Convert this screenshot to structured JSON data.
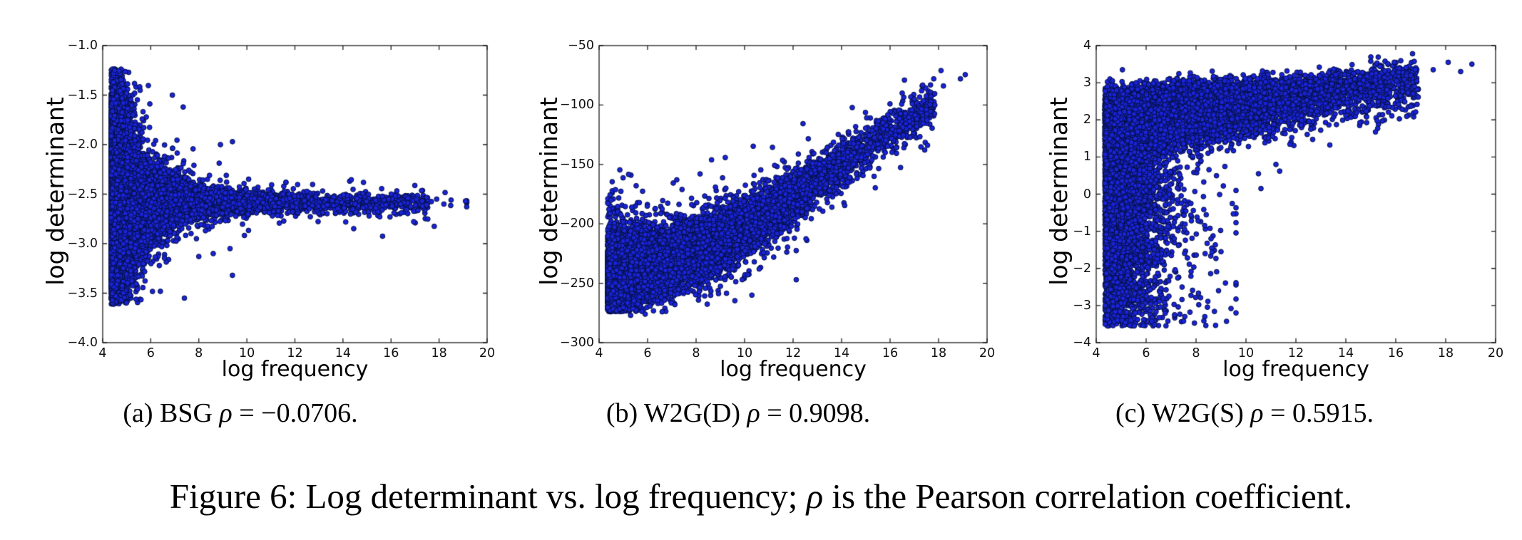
{
  "figure_caption": {
    "prefix": "Figure 6: Log determinant vs. log frequency; ",
    "rho": "ρ",
    "suffix": " is the Pearson correlation coefficient."
  },
  "chart_data": [
    {
      "id": "a",
      "type": "scatter",
      "method": "BSG",
      "pearson_rho": -0.0706,
      "caption": {
        "prefix": "(a) BSG ",
        "rho": "ρ",
        "suffix": " = −0.0706."
      },
      "xlabel": "log frequency",
      "ylabel": "log determinant",
      "xlim": [
        4,
        20
      ],
      "ylim": [
        -4,
        -1
      ],
      "xtick_values": [
        4,
        6,
        8,
        10,
        12,
        14,
        16,
        18,
        20
      ],
      "xtick_labels": [
        "4",
        "6",
        "8",
        "10",
        "12",
        "14",
        "16",
        "18",
        "20"
      ],
      "ytick_values": [
        -1.0,
        -1.5,
        -2.0,
        -2.5,
        -3.0,
        -3.5,
        -4.0
      ],
      "ytick_labels": [
        "−1.0",
        "−1.5",
        "−2.0",
        "−2.5",
        "−3.0",
        "−3.5",
        "−4.0"
      ],
      "marker": {
        "fill": "#1a23d6",
        "edge": "#04103f",
        "radius": 3.4
      },
      "n_points": 20000,
      "model": {
        "kind": "funnel",
        "x_min": 4.36,
        "x_max": 19.15,
        "x_mix": [
          [
            0.58,
            0.32
          ],
          [
            0.38,
            2.2
          ]
        ],
        "x_uniform_span": 13.2,
        "snap_below": 5.3,
        "snap_step": 0.045,
        "y_center": -2.59,
        "sigma_base": 0.05,
        "sigma_amp": 0.5,
        "sigma_decay": 1.3,
        "tail_frac": 0.08,
        "tail_mult": 2.4,
        "y_clip": [
          -3.61,
          -1.23
        ]
      },
      "outliers": [
        [
          7.4,
          -3.55
        ],
        [
          9.4,
          -3.32
        ],
        [
          8.0,
          -3.13
        ],
        [
          8.6,
          -3.1
        ],
        [
          9.3,
          -3.05
        ],
        [
          7.9,
          -2.95
        ],
        [
          8.9,
          -2.0
        ],
        [
          9.4,
          -1.97
        ],
        [
          6.9,
          -1.5
        ],
        [
          7.35,
          -1.62
        ],
        [
          15.9,
          -2.55
        ],
        [
          16.4,
          -2.6
        ],
        [
          16.7,
          -2.54
        ],
        [
          17.3,
          -2.57
        ],
        [
          17.9,
          -2.55
        ],
        [
          18.2,
          -2.6
        ],
        [
          18.5,
          -2.56
        ],
        [
          19.1,
          -2.57
        ]
      ]
    },
    {
      "id": "b",
      "type": "scatter",
      "method": "W2G(D)",
      "pearson_rho": 0.9098,
      "caption": {
        "prefix": "(b) W2G(D) ",
        "rho": "ρ",
        "suffix": " = 0.9098."
      },
      "xlabel": "log frequency",
      "ylabel": "log determinant",
      "xlim": [
        4,
        20
      ],
      "ylim": [
        -300,
        -50
      ],
      "xtick_values": [
        4,
        6,
        8,
        10,
        12,
        14,
        16,
        18,
        20
      ],
      "xtick_labels": [
        "4",
        "6",
        "8",
        "10",
        "12",
        "14",
        "16",
        "18",
        "20"
      ],
      "ytick_values": [
        -50,
        -100,
        -150,
        -200,
        -250,
        -300
      ],
      "ytick_labels": [
        "−50",
        "−100",
        "−150",
        "−200",
        "−250",
        "−300"
      ],
      "marker": {
        "fill": "#1a23d6",
        "edge": "#04103f",
        "radius": 3.4
      },
      "n_points": 24000,
      "model": {
        "kind": "rising_band",
        "x_min": 4.36,
        "x_max": 19.1,
        "exp_w": 0.5,
        "exp_scale": 0.55,
        "norm_w": 0.42,
        "norm_scale": 3.8,
        "uniform_span": 13.5,
        "snap_below": 5.3,
        "snap_step": 0.045,
        "mu_anchors": [
          [
            4.36,
            -246
          ],
          [
            6,
            -236
          ],
          [
            8,
            -224
          ],
          [
            10,
            -204
          ],
          [
            12,
            -178
          ],
          [
            14,
            -150
          ],
          [
            16,
            -122
          ],
          [
            18,
            -96
          ],
          [
            19.3,
            -78
          ]
        ],
        "sigma_anchors": [
          [
            4.36,
            12
          ],
          [
            10,
            12
          ],
          [
            14,
            10
          ],
          [
            17,
            8
          ],
          [
            19.3,
            6
          ]
        ],
        "tail_frac": 0.06,
        "tail_mult": 2.2,
        "y_clip": [
          -274,
          -55
        ]
      },
      "outliers": [
        [
          5.3,
          -206
        ],
        [
          5.6,
          -204
        ],
        [
          6.4,
          -203
        ],
        [
          6.6,
          -206
        ],
        [
          5.9,
          -209
        ],
        [
          10.4,
          -232
        ],
        [
          10.6,
          -238
        ],
        [
          9.9,
          -247
        ],
        [
          10.3,
          -260
        ],
        [
          11.2,
          -228
        ],
        [
          12.8,
          -188
        ],
        [
          13.6,
          -186
        ],
        [
          5.3,
          -277
        ],
        [
          5.9,
          -276
        ],
        [
          6.6,
          -274
        ],
        [
          16.5,
          -90
        ],
        [
          17.0,
          -95
        ],
        [
          17.3,
          -88
        ],
        [
          17.8,
          -78
        ],
        [
          18.1,
          -71
        ],
        [
          18.2,
          -84
        ],
        [
          18.9,
          -78
        ],
        [
          16.9,
          -104
        ]
      ]
    },
    {
      "id": "c",
      "type": "scatter",
      "method": "W2G(S)",
      "pearson_rho": 0.5915,
      "caption": {
        "prefix": "(c) W2G(S) ",
        "rho": "ρ",
        "suffix": " = 0.5915."
      },
      "xlabel": "log frequency",
      "ylabel": "log determinant",
      "xlim": [
        4,
        20
      ],
      "ylim": [
        -4,
        4
      ],
      "xtick_values": [
        4,
        6,
        8,
        10,
        12,
        14,
        16,
        18,
        20
      ],
      "xtick_labels": [
        "4",
        "6",
        "8",
        "10",
        "12",
        "14",
        "16",
        "18",
        "20"
      ],
      "ytick_values": [
        4,
        3,
        2,
        1,
        0,
        -1,
        -2,
        -3,
        -4
      ],
      "ytick_labels": [
        "4",
        "3",
        "2",
        "1",
        "0",
        "−1",
        "−2",
        "−3",
        "−4"
      ],
      "marker": {
        "fill": "#1a23d6",
        "edge": "#04103f",
        "radius": 3.4
      },
      "n_points": 22000,
      "model": {
        "kind": "wedge_band",
        "x_min": 4.36,
        "snap_below": 5.3,
        "snap_step": 0.045,
        "bulk_w": 0.33,
        "bulk_x_scale": 0.55,
        "bulk_x_max": 9.5,
        "bulk_top": 2.45,
        "bulk_spread": 1.9,
        "lower_anchors": [
          [
            4.36,
            -3.55
          ],
          [
            5.9,
            -3.55
          ],
          [
            7.0,
            -2.1
          ],
          [
            8.0,
            -0.7
          ],
          [
            9.0,
            0.45
          ],
          [
            9.5,
            0.95
          ]
        ],
        "band_w": 0.59,
        "band_norm_scale": 3.4,
        "band_uniform_frac": 0.15,
        "band_uniform_span": 12.5,
        "band_x_max": 16.9,
        "ridge_anchors": [
          [
            4.36,
            2.32
          ],
          [
            8,
            2.52
          ],
          [
            12,
            2.78
          ],
          [
            16,
            3.12
          ],
          [
            19.3,
            3.5
          ]
        ],
        "ridge_up": 0.22,
        "ridge_down": 0.5,
        "deep_w": 0.08,
        "deep_x_scale": 1.0,
        "deep_x_max": 9.6,
        "deep_y": [
          -3.55,
          0.6
        ],
        "y_clip": [
          -3.58,
          3.8
        ]
      },
      "outliers": [
        [
          4.55,
          3.1
        ],
        [
          4.65,
          3.05
        ],
        [
          5.05,
          3.35
        ],
        [
          5.6,
          3.0
        ],
        [
          5.75,
          3.05
        ],
        [
          6.1,
          2.95
        ],
        [
          7.9,
          2.72
        ],
        [
          8.45,
          2.78
        ],
        [
          9.4,
          -3.08
        ],
        [
          8.35,
          -3.3
        ],
        [
          7.5,
          -3.42
        ],
        [
          8.9,
          -2.6
        ],
        [
          9.0,
          -1.55
        ],
        [
          8.6,
          -1.2
        ],
        [
          10.6,
          0.15
        ],
        [
          11.2,
          0.8
        ],
        [
          11.35,
          0.62
        ],
        [
          10.5,
          0.55
        ],
        [
          16.6,
          3.2
        ],
        [
          17.5,
          3.35
        ],
        [
          18.1,
          3.55
        ],
        [
          18.6,
          3.3
        ],
        [
          19.05,
          3.5
        ]
      ]
    }
  ]
}
